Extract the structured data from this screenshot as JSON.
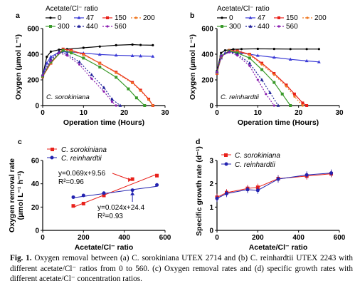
{
  "caption": {
    "fig_label": "Fig. 1.",
    "text": " Oxygen removal between (a) C. sorokiniana UTEX 2714 and (b) C. reinhardtii UTEX 2243 with different acetate/Cl⁻ ratios from 0 to 560. (c) Oxygen removal rates and (d) specific growth rates with different acetate/Cl⁻ concentration ratios."
  },
  "colors": {
    "r0": "#000000",
    "r47": "#3b3bd6",
    "r150": "#e8211b",
    "r200": "#f07a24",
    "r300": "#3a9a2a",
    "r440": "#1f1f99",
    "r560": "#8b1fb0",
    "sorokiniana": "#e8211b",
    "reinhardtii": "#2323b0"
  },
  "chart_data": [
    {
      "type": "line",
      "panel": "a",
      "species_label": "C. sorokiniana",
      "xlabel": "Operation time (Hours)",
      "ylabel": "Oxygen (μmol L⁻¹)",
      "xlim": [
        0,
        30
      ],
      "ylim": [
        0,
        600
      ],
      "xticks": [
        "0",
        "10",
        "20",
        "30"
      ],
      "yticks": [
        "0",
        "200",
        "400",
        "600"
      ],
      "legend_title": "Acetate/Cl⁻ ratio",
      "legend_position": "top",
      "series": [
        {
          "name": "0",
          "x": [
            0,
            1,
            2,
            4,
            6,
            10,
            14,
            18,
            22,
            24,
            27
          ],
          "y": [
            230,
            380,
            420,
            435,
            440,
            450,
            460,
            470,
            475,
            472,
            470
          ]
        },
        {
          "name": "47",
          "x": [
            0,
            1,
            2,
            4,
            6,
            10,
            14,
            18,
            22,
            24,
            27
          ],
          "y": [
            240,
            330,
            380,
            415,
            420,
            408,
            398,
            392,
            388,
            386,
            383
          ]
        },
        {
          "name": "150",
          "x": [
            0,
            2,
            5,
            7,
            10,
            14,
            18,
            22,
            24,
            26,
            27
          ],
          "y": [
            225,
            330,
            440,
            430,
            400,
            330,
            260,
            180,
            120,
            50,
            0
          ]
        },
        {
          "name": "200",
          "x": [
            0,
            2,
            5,
            7,
            10,
            14,
            18,
            22,
            24,
            26,
            27
          ],
          "y": [
            225,
            330,
            435,
            425,
            395,
            330,
            255,
            175,
            115,
            45,
            0
          ]
        },
        {
          "name": "300",
          "x": [
            0,
            2,
            5,
            7,
            10,
            14,
            18,
            21,
            23,
            25
          ],
          "y": [
            230,
            340,
            430,
            410,
            370,
            300,
            220,
            130,
            60,
            0
          ]
        },
        {
          "name": "440",
          "x": [
            0,
            2,
            4,
            6,
            9,
            12,
            15,
            17,
            19
          ],
          "y": [
            240,
            360,
            420,
            400,
            340,
            240,
            140,
            50,
            0
          ]
        },
        {
          "name": "560",
          "x": [
            0,
            2,
            4,
            6,
            9,
            12,
            15,
            17,
            18
          ],
          "y": [
            235,
            350,
            410,
            390,
            320,
            210,
            110,
            30,
            0
          ]
        }
      ]
    },
    {
      "type": "line",
      "panel": "b",
      "species_label": "C. reinhardtii",
      "xlabel": "Operation time (Hours)",
      "ylabel": "Oxygen (μmol L⁻¹)",
      "xlim": [
        0,
        30
      ],
      "ylim": [
        0,
        600
      ],
      "xticks": [
        "0",
        "10",
        "20",
        "30"
      ],
      "yticks": [
        "0",
        "200",
        "400",
        "600"
      ],
      "legend_title": "Acetate/Cl⁻ ratio",
      "legend_position": "top",
      "series": [
        {
          "name": "0",
          "x": [
            0,
            1,
            2,
            4,
            6,
            10,
            14,
            18,
            22,
            25
          ],
          "y": [
            270,
            410,
            430,
            438,
            440,
            442,
            441,
            440,
            440,
            440
          ]
        },
        {
          "name": "47",
          "x": [
            0,
            1,
            2,
            4,
            6,
            10,
            14,
            18,
            22,
            25
          ],
          "y": [
            260,
            370,
            410,
            420,
            410,
            390,
            375,
            360,
            348,
            340
          ]
        },
        {
          "name": "150",
          "x": [
            0,
            1,
            3,
            5,
            8,
            11,
            14,
            17,
            19,
            21,
            22
          ],
          "y": [
            250,
            380,
            430,
            425,
            400,
            330,
            250,
            160,
            90,
            20,
            0
          ]
        },
        {
          "name": "200",
          "x": [
            0,
            1,
            3,
            5,
            8,
            11,
            14,
            17,
            19,
            21
          ],
          "y": [
            250,
            380,
            428,
            420,
            395,
            320,
            240,
            150,
            70,
            0
          ]
        },
        {
          "name": "300",
          "x": [
            0,
            1,
            3,
            5,
            8,
            11,
            14,
            16,
            18
          ],
          "y": [
            260,
            385,
            425,
            410,
            370,
            280,
            180,
            90,
            0
          ]
        },
        {
          "name": "440",
          "x": [
            0,
            1,
            3,
            5,
            8,
            11,
            13,
            15
          ],
          "y": [
            265,
            390,
            420,
            400,
            330,
            200,
            100,
            0
          ]
        },
        {
          "name": "560",
          "x": [
            0,
            1,
            3,
            5,
            8,
            10,
            12,
            14
          ],
          "y": [
            260,
            385,
            415,
            390,
            310,
            200,
            90,
            0
          ]
        }
      ]
    },
    {
      "type": "scatter",
      "panel": "c",
      "xlabel": "Acetate/Cl⁻ ratio",
      "ylabel": "Oxygen removal rate (μmol L⁻¹ h⁻¹)",
      "xlim": [
        0,
        600
      ],
      "ylim": [
        0,
        60
      ],
      "xticks": [
        "0",
        "200",
        "400",
        "600"
      ],
      "yticks": [
        "0",
        "20",
        "40",
        "60"
      ],
      "legend_position": "top-left",
      "series": [
        {
          "name": "C. sorokiniana",
          "x": [
            150,
            200,
            300,
            440,
            560
          ],
          "y": [
            21,
            23,
            30,
            44,
            47
          ],
          "fit": {
            "slope": 0.069,
            "intercept": 9.56,
            "equation": "y=0.069x+9.56",
            "r2": "R²=0.96"
          }
        },
        {
          "name": "C. reinhardtii",
          "x": [
            150,
            200,
            300,
            440,
            560
          ],
          "y": [
            28.5,
            30,
            32,
            34.5,
            39
          ],
          "fit": {
            "slope": 0.024,
            "intercept": 24.4,
            "equation": "y=0.024x+24.4",
            "r2": "R²=0.93"
          }
        }
      ]
    },
    {
      "type": "line",
      "panel": "d",
      "xlabel": "Acetate/Cl⁻ ratio",
      "ylabel": "Specific growth rate (d⁻¹)",
      "xlim": [
        0,
        600
      ],
      "ylim": [
        0,
        3
      ],
      "xticks": [
        "0",
        "200",
        "400",
        "600"
      ],
      "yticks": [
        "0",
        "1",
        "2",
        "3"
      ],
      "legend_position": "top-left",
      "series": [
        {
          "name": "C.  sorokiniana",
          "x": [
            0,
            47,
            150,
            200,
            300,
            440,
            560
          ],
          "y": [
            1.42,
            1.62,
            1.8,
            1.85,
            2.22,
            2.33,
            2.43
          ]
        },
        {
          "name": "C. reinhardtii",
          "x": [
            0,
            47,
            150,
            200,
            300,
            440,
            560
          ],
          "y": [
            1.37,
            1.58,
            1.75,
            1.72,
            2.2,
            2.38,
            2.46
          ]
        }
      ]
    }
  ]
}
